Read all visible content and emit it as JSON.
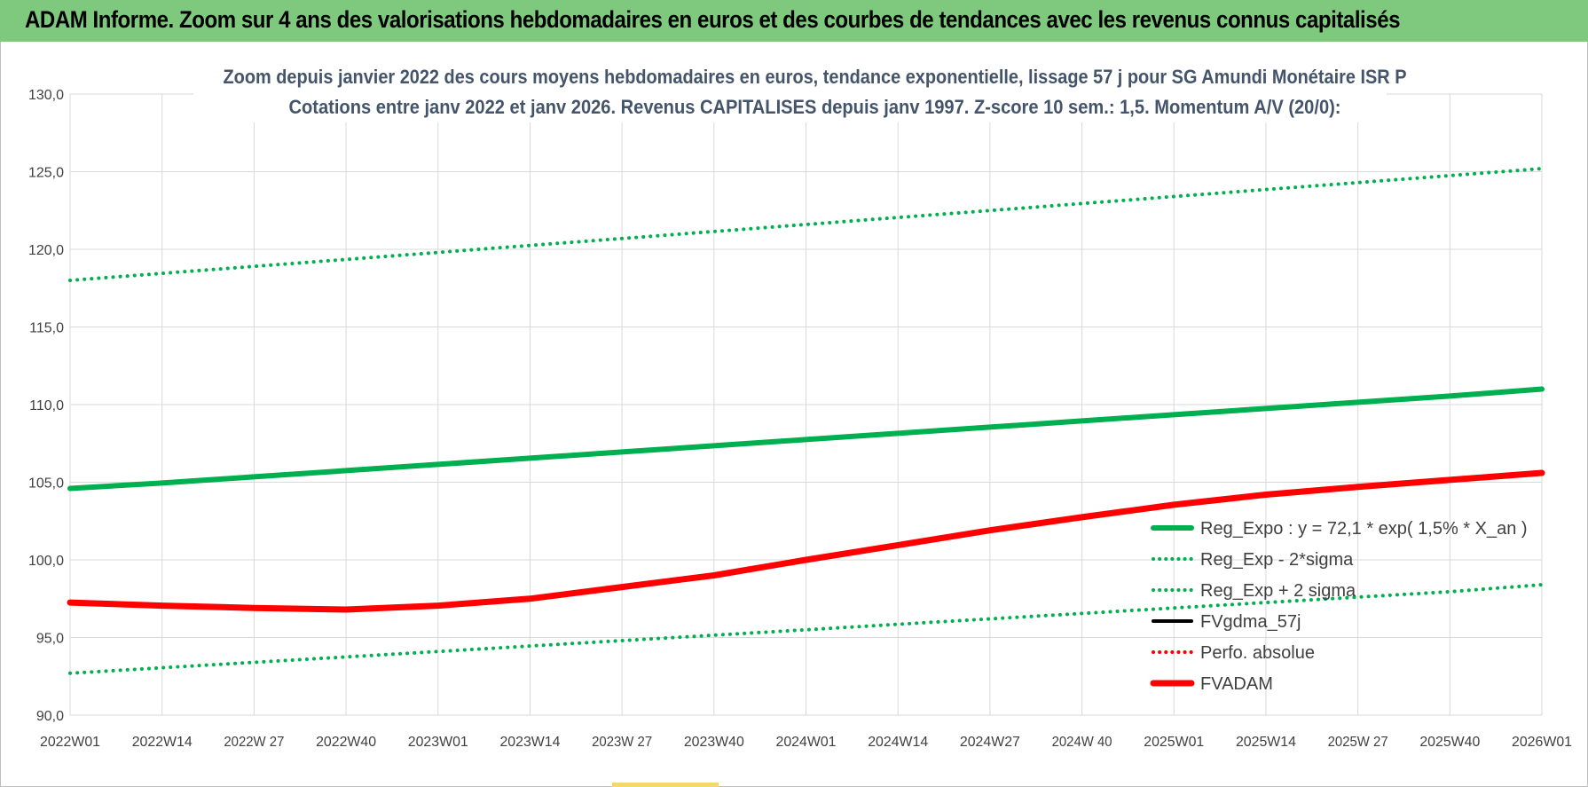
{
  "header": {
    "title": "ADAM Informe. Zoom sur 4 ans des valorisations hebdomadaires en euros et des courbes de tendances avec les revenus connus capitalisés"
  },
  "colors": {
    "banner": "#7fc97f",
    "reg_expo": "#00b050",
    "sigma_bands": "#00b050",
    "fvgdma": "#000000",
    "perfo": "#ff0000",
    "fvadam": "#ff0000",
    "grid": "#d9d9d9",
    "title": "#44546a"
  },
  "chart_data": {
    "type": "line",
    "title_lines": [
      "Zoom depuis janvier 2022 des cours moyens hebdomadaires en euros, tendance exponentielle, lissage 57 j pour SG Amundi Monétaire ISR P",
      "Cotations entre janv 2022 et janv 2026. Revenus CAPITALISES depuis janv 1997. Z-score 10 sem.: 1,5. Momentum A/V (20/0):"
    ],
    "xlabel": "",
    "ylabel": "",
    "ylim": [
      90,
      130
    ],
    "y_ticks": [
      "90,0",
      "95,0",
      "100,0",
      "105,0",
      "110,0",
      "115,0",
      "120,0",
      "125,0",
      "130,0"
    ],
    "y_tick_values": [
      90,
      95,
      100,
      105,
      110,
      115,
      120,
      125,
      130
    ],
    "categories": [
      "2022W01",
      "2022W14",
      "2022W27",
      "2022W40",
      "2023W01",
      "2023W14",
      "2023W27",
      "2023W40",
      "2024W01",
      "2024W14",
      "2024W27",
      "2024W40",
      "2025W01",
      "2025W14",
      "2025W27",
      "2025W40",
      "2026W01"
    ],
    "x_tick_labels": [
      "2022W01",
      "2022W14",
      "2022W 27",
      "2022W40",
      "2023W01",
      "2023W14",
      "2023W 27",
      "2023W40",
      "2024W01",
      "2024W14",
      "2024W27",
      "2024W 40",
      "2025W01",
      "2025W14",
      "2025W 27",
      "2025W40",
      "2026W01"
    ],
    "grid": true,
    "legend_position": "bottom-right",
    "series": [
      {
        "name": "Reg_Expo : y = 72,1 * exp( 1,5% *  X_an )",
        "style": "solid-thick",
        "color": "#00b050",
        "values": [
          104.6,
          104.95,
          105.35,
          105.75,
          106.15,
          106.55,
          106.95,
          107.35,
          107.75,
          108.15,
          108.55,
          108.95,
          109.35,
          109.75,
          110.15,
          110.55,
          111.0
        ]
      },
      {
        "name": "Reg_Exp - 2*sigma",
        "style": "dotted",
        "color": "#00b050",
        "values": [
          92.7,
          93.05,
          93.4,
          93.75,
          94.1,
          94.45,
          94.8,
          95.15,
          95.5,
          95.85,
          96.2,
          96.55,
          96.9,
          97.25,
          97.6,
          97.95,
          98.4
        ]
      },
      {
        "name": "Reg_Exp + 2 sigma",
        "style": "dotted",
        "color": "#00b050",
        "values": [
          118.0,
          118.45,
          118.9,
          119.35,
          119.8,
          120.25,
          120.7,
          121.15,
          121.6,
          122.05,
          122.5,
          122.95,
          123.4,
          123.85,
          124.3,
          124.75,
          125.2
        ]
      },
      {
        "name": "FVgdma_57j",
        "style": "solid",
        "color": "#000000",
        "values": [
          97.25,
          97.05,
          96.9,
          96.85,
          97.05,
          97.55,
          98.25,
          99.05,
          100.05,
          101.0,
          101.9,
          102.75,
          103.6,
          104.2,
          104.7,
          105.15,
          105.6
        ]
      },
      {
        "name": "Perfo. absolue",
        "style": "dotted",
        "color": "#ff0000",
        "values": [
          97.25,
          97.05,
          96.9,
          96.8,
          97.05,
          97.5,
          98.25,
          99.0,
          100.0,
          100.95,
          101.9,
          102.75,
          103.55,
          104.2,
          104.7,
          105.15,
          105.6
        ]
      },
      {
        "name": "FVADAM",
        "style": "solid-thick",
        "color": "#ff0000",
        "values": [
          97.25,
          97.05,
          96.9,
          96.8,
          97.05,
          97.5,
          98.25,
          99.0,
          100.0,
          100.95,
          101.9,
          102.75,
          103.55,
          104.2,
          104.7,
          105.15,
          105.6
        ]
      }
    ]
  }
}
